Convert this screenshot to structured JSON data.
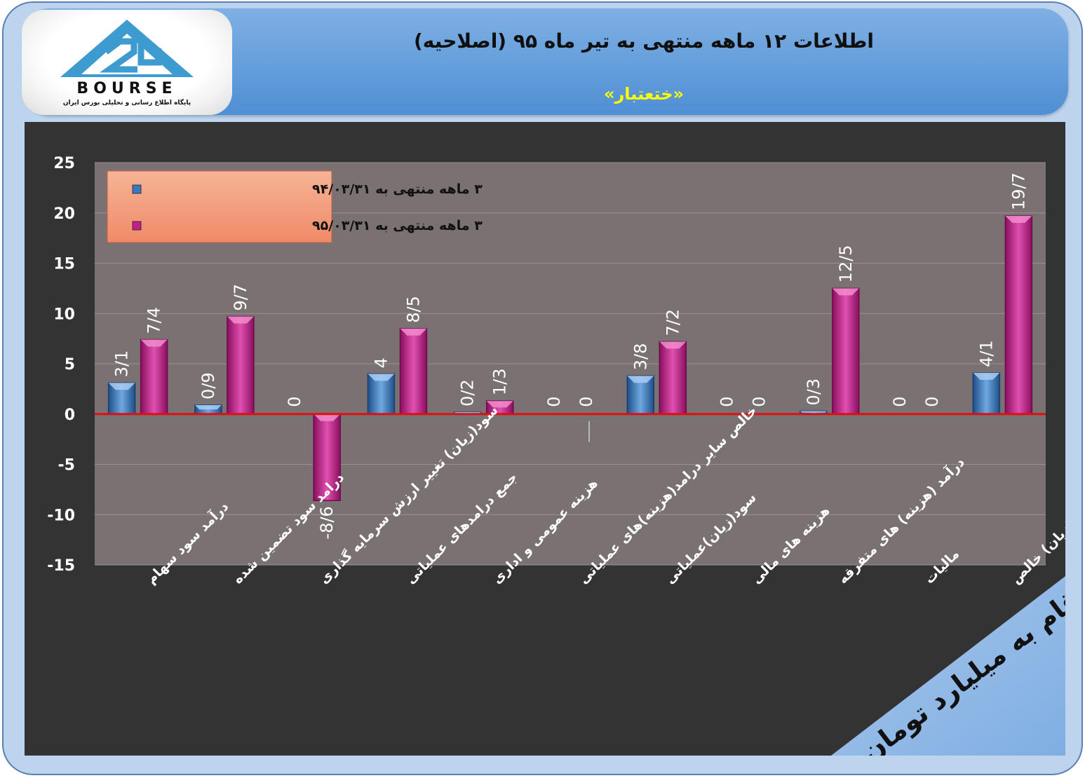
{
  "header": {
    "title": "اطلاعات ۱۲ ماهه منتهی به تیر ماه ۹۵ (اصلاحیه)",
    "subtitle": "«ختعتبار»",
    "logo_text": "BOURSE",
    "logo_subtitle": "پایگاه اطلاع رسانی و تحلیلی بورس ایران",
    "logo_mark": "24"
  },
  "note": "ارقام به میلیارد تومان",
  "colors": {
    "header": "#5b95d6",
    "chart_background": "#333333",
    "plot_background": "#7a7272",
    "series1": "#3a78c0",
    "series2": "#c41e8a",
    "zero_line": "#e01010",
    "legend_background": "#f4a582",
    "subtitle": "#ffff00"
  },
  "chart_data": {
    "type": "bar",
    "categories": [
      "درآمد سود سهام",
      "درامد سود تضمین شده",
      "سود(زیان) تغییر ارزش سرمایه گذاری",
      "جمع درامدهای عملیاتی",
      "هزینه عمومی و اداری",
      "خالص سایر درامد(هزینه)های عملیاتی",
      "سود(زیان)عملیاتی",
      "هزینه های مالی",
      "درآمد (هزینه) های متفرقه",
      "مالیات",
      "سود(زیان) خالص"
    ],
    "series": [
      {
        "name": "۳ ماهه منتهی به ۹۴/۰۳/۳۱",
        "values": [
          3.1,
          0.9,
          0,
          4,
          0.2,
          0,
          3.8,
          0,
          0.3,
          0,
          4.1
        ],
        "labels": [
          "3/1",
          "0/9",
          "0",
          "4",
          "0/2",
          "0",
          "3/8",
          "0",
          "0/3",
          "0",
          "4/1"
        ]
      },
      {
        "name": "۳ ماهه منتهی به ۹۵/۰۳/۳۱",
        "values": [
          7.4,
          9.7,
          -8.6,
          8.5,
          1.3,
          0,
          7.2,
          0,
          12.5,
          0,
          19.7
        ],
        "labels": [
          "7/4",
          "9/7",
          "-8/6",
          "8/5",
          "1/3",
          "0",
          "7/2",
          "0",
          "12/5",
          "0",
          "19/7"
        ]
      }
    ],
    "ylim": [
      -15,
      25
    ],
    "yticks": [
      25,
      20,
      15,
      10,
      5,
      0,
      -5,
      -10,
      -15
    ],
    "grid": true,
    "legend": "top-left"
  }
}
